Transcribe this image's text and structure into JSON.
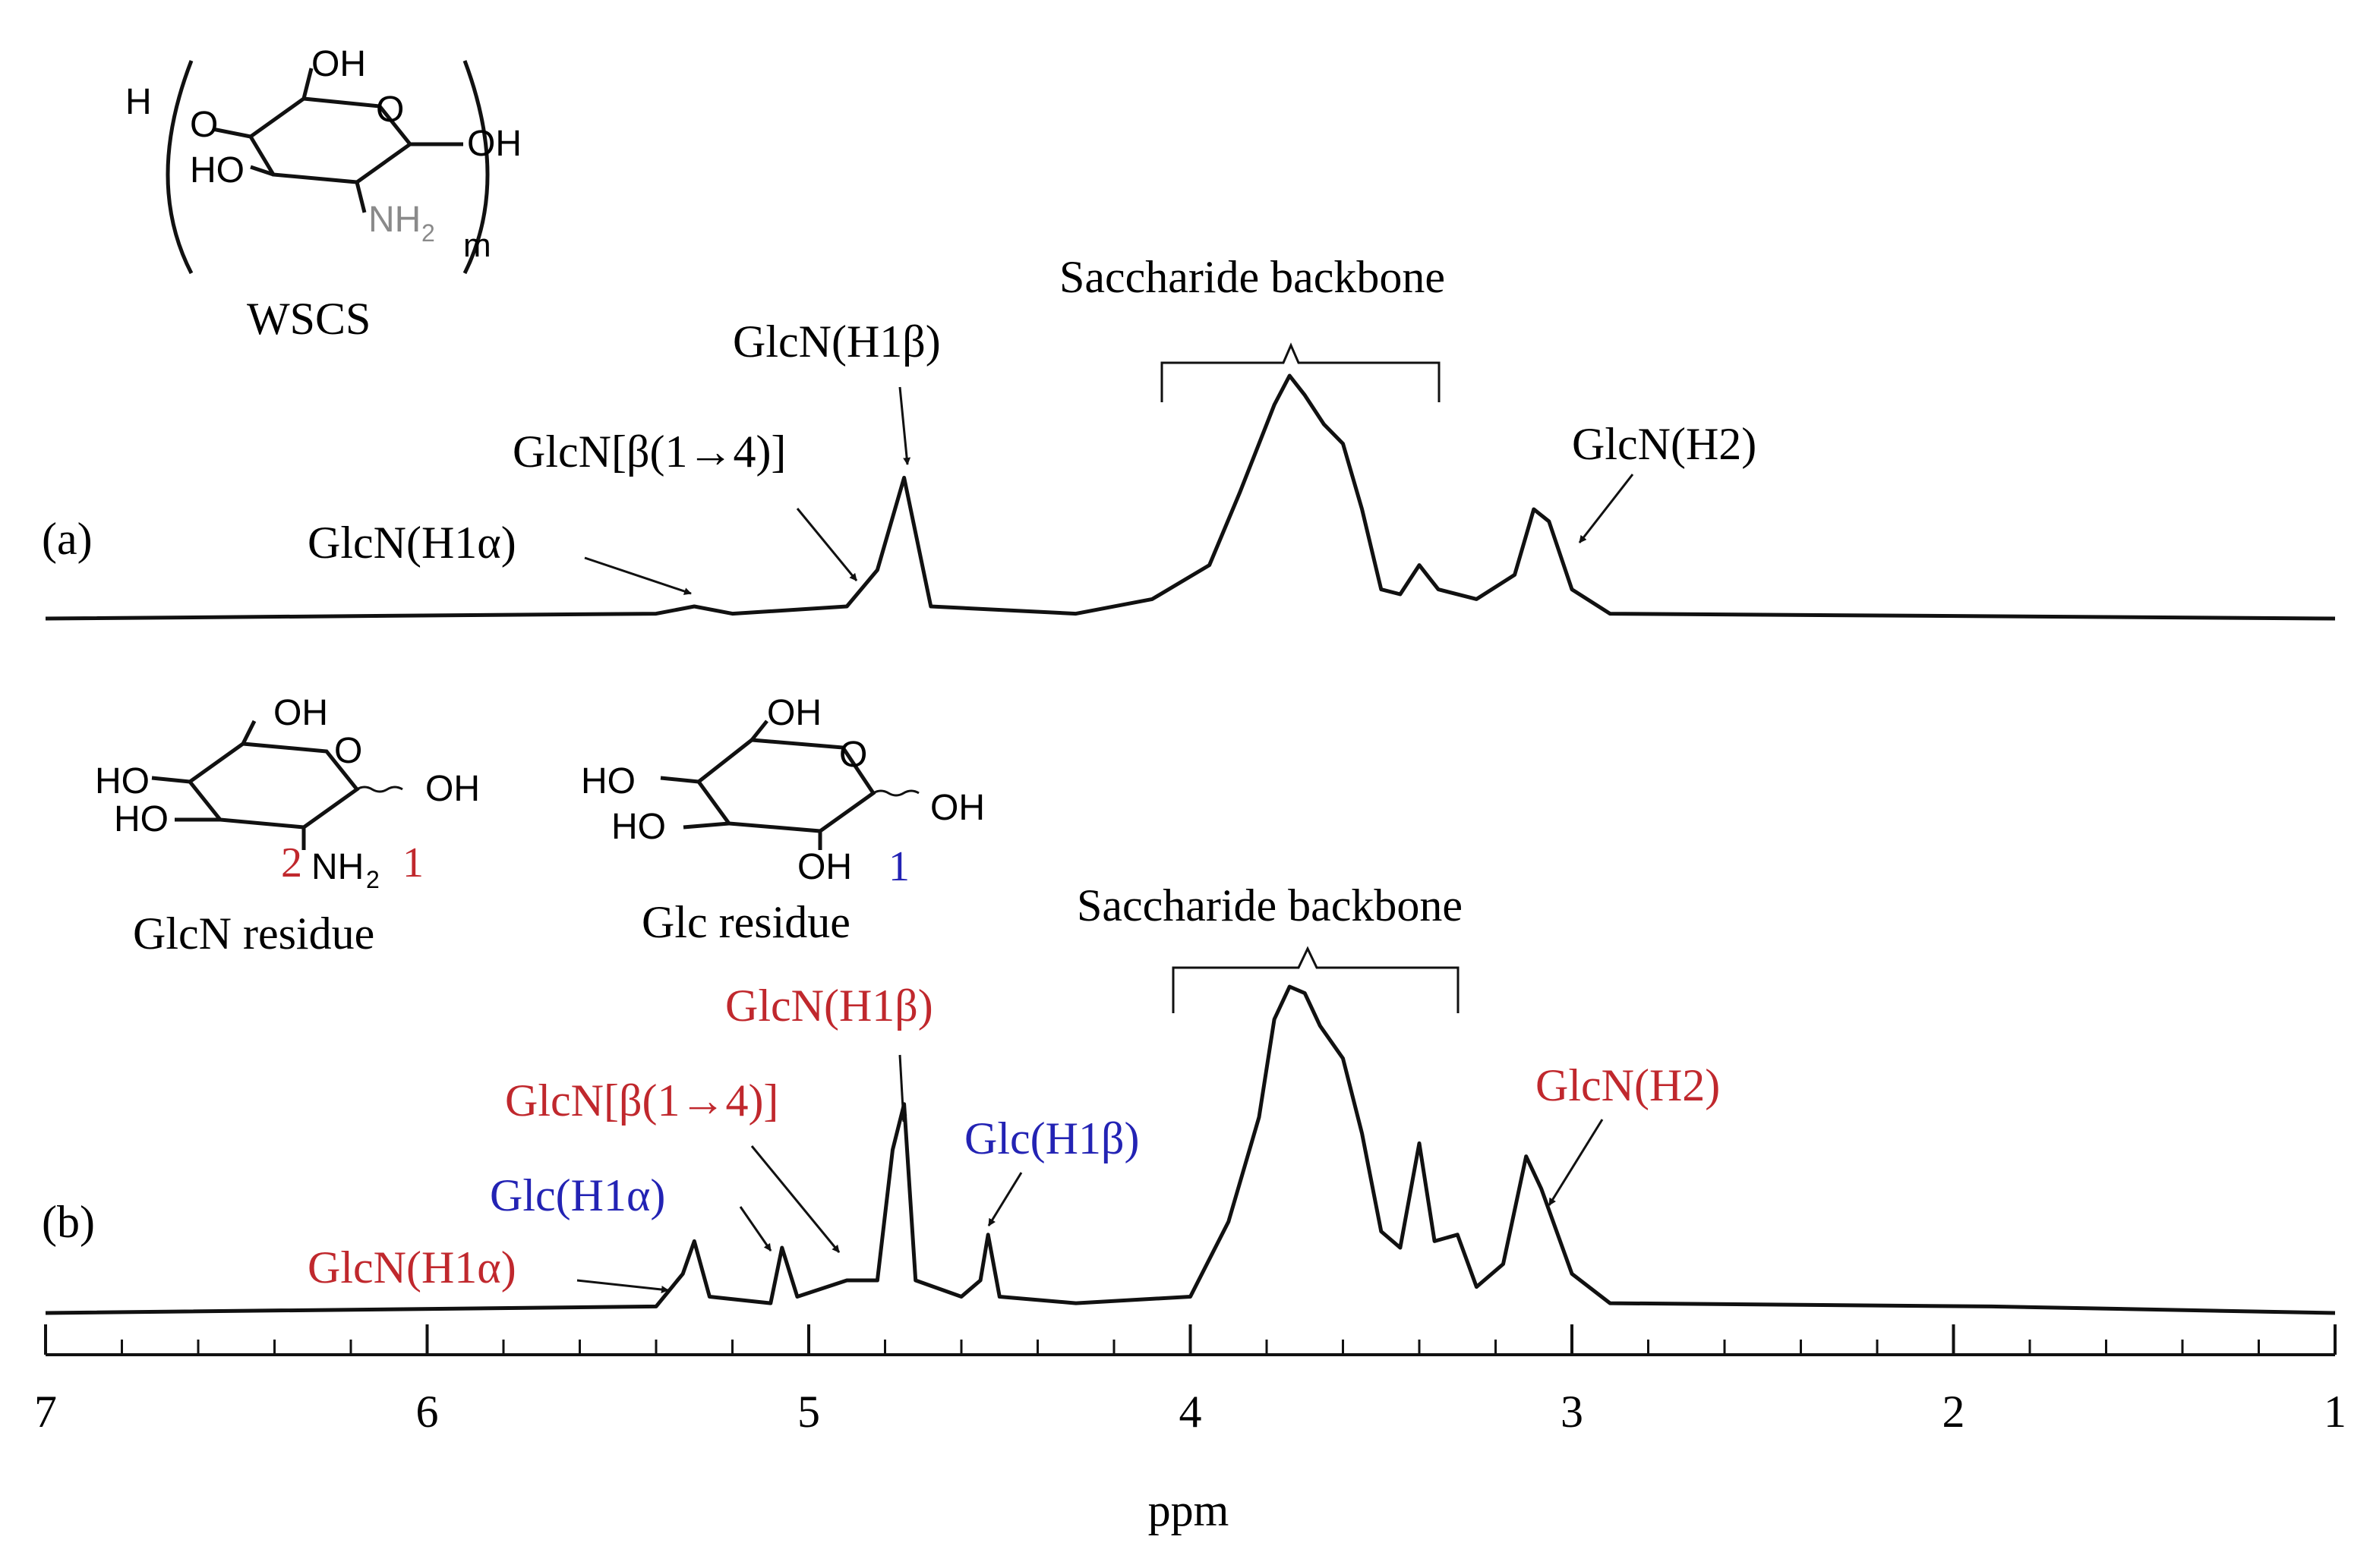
{
  "chart_data": {
    "type": "line",
    "xlabel": "ppm",
    "xlim": [
      7,
      1
    ],
    "x_reversed": true,
    "x_ticks": [
      "7",
      "6",
      "5",
      "4",
      "3",
      "2",
      "1"
    ],
    "grid": false,
    "series": [
      {
        "name": "(a)",
        "x": [
          7.0,
          5.4,
          5.3,
          5.2,
          4.9,
          4.82,
          4.75,
          4.68,
          4.3,
          4.1,
          3.95,
          3.87,
          3.82,
          3.78,
          3.74,
          3.7,
          3.65,
          3.6,
          3.55,
          3.5,
          3.45,
          3.4,
          3.35,
          3.25,
          3.15,
          3.1,
          3.06,
          3.0,
          2.9,
          1.0
        ],
        "y": [
          0.0,
          0.02,
          0.05,
          0.02,
          0.05,
          0.2,
          0.58,
          0.05,
          0.02,
          0.08,
          0.22,
          0.52,
          0.72,
          0.88,
          1.0,
          0.92,
          0.8,
          0.72,
          0.45,
          0.12,
          0.1,
          0.22,
          0.12,
          0.08,
          0.18,
          0.45,
          0.4,
          0.12,
          0.02,
          0.0
        ]
      },
      {
        "name": "(b)",
        "x": [
          7.0,
          5.4,
          5.33,
          5.3,
          5.26,
          5.1,
          5.07,
          5.03,
          4.9,
          4.82,
          4.78,
          4.75,
          4.72,
          4.6,
          4.55,
          4.53,
          4.5,
          4.3,
          4.0,
          3.9,
          3.82,
          3.78,
          3.74,
          3.7,
          3.66,
          3.6,
          3.55,
          3.5,
          3.45,
          3.4,
          3.36,
          3.3,
          3.25,
          3.18,
          3.12,
          3.08,
          3.0,
          2.9,
          1.9,
          1.0
        ],
        "y": [
          0.0,
          0.02,
          0.12,
          0.22,
          0.05,
          0.03,
          0.2,
          0.05,
          0.1,
          0.1,
          0.5,
          0.64,
          0.1,
          0.05,
          0.1,
          0.24,
          0.05,
          0.03,
          0.05,
          0.28,
          0.6,
          0.9,
          1.0,
          0.98,
          0.88,
          0.78,
          0.55,
          0.25,
          0.2,
          0.52,
          0.22,
          0.24,
          0.08,
          0.15,
          0.48,
          0.38,
          0.12,
          0.03,
          0.02,
          0.0
        ]
      }
    ],
    "annotations_a": {
      "panel_label": "(a)",
      "structure_name": "WSCS",
      "peak_labels": [
        "GlcN(H1α)",
        "GlcN[β(1→4)]",
        "GlcN(H1β)",
        "Saccharide backbone",
        "GlcN(H2)"
      ]
    },
    "annotations_b": {
      "panel_label": "(b)",
      "structure_names": [
        "GlcN residue",
        "Glc residue"
      ],
      "peak_labels": [
        "GlcN(H1α)",
        "Glc(H1α)",
        "GlcN[β(1→4)]",
        "GlcN(H1β)",
        "Glc(H1β)",
        "Saccharide backbone",
        "GlcN(H2)"
      ]
    },
    "chem_text": {
      "H": "H",
      "O": "O",
      "OH": "OH",
      "HO": "HO",
      "NH2": "NH",
      "sub2": "2",
      "m": "m",
      "n1": "1",
      "n2": "2"
    }
  },
  "colors": {
    "trace": "#111111",
    "glcn_red": "#c0282d",
    "glc_blue": "#2323b4",
    "text": "#111111",
    "gray_nh2": "#8a8a8a"
  }
}
